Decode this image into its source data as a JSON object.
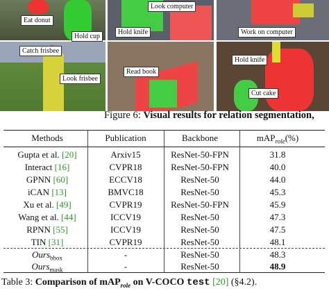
{
  "figure": {
    "labels": [
      "Eat donut",
      "Hold cup",
      "Look computer",
      "Hold knife",
      "Work on computer",
      "Catch frisbee",
      "Look frisbee",
      "Read book",
      "Hold knife",
      "Cut cake"
    ],
    "caption": {
      "label": "Figure 6:",
      "text": "Visual results for relation segmentation,"
    }
  },
  "table": {
    "headers": [
      "Methods",
      "Publication",
      "Backbone"
    ],
    "metric_header": {
      "base": "mAP",
      "sub": "role",
      "suffix": "(%)"
    },
    "rows": [
      {
        "method": "Gupta et al.",
        "cite": "[20]",
        "publication": "Arxiv15",
        "backbone": "ResNet-50-FPN",
        "map": "31.8"
      },
      {
        "method": "Interact",
        "cite": "[16]",
        "publication": "CVPR18",
        "backbone": "ResNet-50-FPN",
        "map": "40.0"
      },
      {
        "method": "GPNN",
        "cite": "[60]",
        "publication": "ECCV18",
        "backbone": "ResNet-50",
        "map": "44.0"
      },
      {
        "method": "iCAN",
        "cite": "[13]",
        "publication": "BMVC18",
        "backbone": "ResNet-50",
        "map": "45.3"
      },
      {
        "method": "Xu et al.",
        "cite": "[49]",
        "publication": "CVPR19",
        "backbone": "ResNet-50-FPN",
        "map": "45.9"
      },
      {
        "method": "Wang et al.",
        "cite": "[44]",
        "publication": "ICCV19",
        "backbone": "ResNet-50",
        "map": "47.3"
      },
      {
        "method": "RPNN",
        "cite": "[55]",
        "publication": "ICCV19",
        "backbone": "ResNet-50",
        "map": "47.5"
      },
      {
        "method": "TIN",
        "cite": "[31]",
        "publication": "CVPR19",
        "backbone": "ResNet-50",
        "map": "48.1"
      }
    ],
    "ours_rows": [
      {
        "method": "Ours",
        "sub": "bbox",
        "publication": "-",
        "backbone": "ResNet-50",
        "map": "48.3"
      },
      {
        "method": "Ours",
        "sub": "mask",
        "publication": "-",
        "backbone": "ResNet-50",
        "map": "48.9"
      }
    ]
  },
  "caption": {
    "label": "Table 3:",
    "text": "Comparison of mAP",
    "sub": "role",
    "on": "on V-COCO",
    "code": "test",
    "cite": "[20]",
    "ref": "(§4.2)."
  }
}
